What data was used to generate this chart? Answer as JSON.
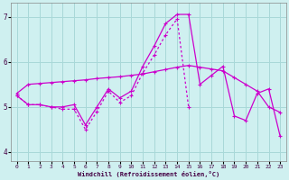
{
  "xlabel": "Windchill (Refroidissement éolien,°C)",
  "background_color": "#cff0f0",
  "grid_color": "#a8d8d8",
  "line_color": "#cc00cc",
  "xlim": [
    -0.5,
    23.5
  ],
  "ylim": [
    3.8,
    7.3
  ],
  "yticks": [
    4,
    5,
    6,
    7
  ],
  "xticks": [
    0,
    1,
    2,
    3,
    4,
    5,
    6,
    7,
    8,
    9,
    10,
    11,
    12,
    13,
    14,
    15,
    16,
    17,
    18,
    19,
    20,
    21,
    22,
    23
  ],
  "series1_x": [
    0,
    1,
    2,
    3,
    4,
    5,
    6,
    7,
    8,
    9,
    10,
    11,
    12,
    13,
    14,
    15,
    16,
    17,
    18,
    19,
    20,
    21,
    22,
    23
  ],
  "series1_y": [
    5.3,
    5.5,
    5.52,
    5.54,
    5.56,
    5.58,
    5.6,
    5.63,
    5.65,
    5.67,
    5.7,
    5.73,
    5.78,
    5.83,
    5.88,
    5.92,
    5.88,
    5.84,
    5.8,
    5.65,
    5.5,
    5.35,
    5.0,
    4.88
  ],
  "series2_x": [
    0,
    1,
    2,
    3,
    4,
    5,
    6,
    7,
    8,
    9,
    10,
    11,
    12,
    13,
    14,
    15,
    16,
    17,
    18,
    19,
    20,
    21,
    22,
    23
  ],
  "series2_y": [
    5.25,
    5.05,
    5.05,
    5.0,
    5.0,
    5.05,
    4.6,
    5.0,
    5.4,
    5.2,
    5.35,
    5.9,
    6.35,
    6.85,
    7.05,
    7.05,
    5.5,
    5.7,
    5.9,
    4.8,
    4.7,
    5.3,
    5.4,
    4.35
  ],
  "series3_x": [
    0,
    1,
    2,
    3,
    4,
    5,
    6,
    7,
    8,
    9,
    10,
    11,
    12,
    13,
    14,
    15
  ],
  "series3_y": [
    5.25,
    5.05,
    5.05,
    5.0,
    4.95,
    4.95,
    4.5,
    4.9,
    5.35,
    5.1,
    5.25,
    5.75,
    6.15,
    6.6,
    6.95,
    5.0
  ]
}
